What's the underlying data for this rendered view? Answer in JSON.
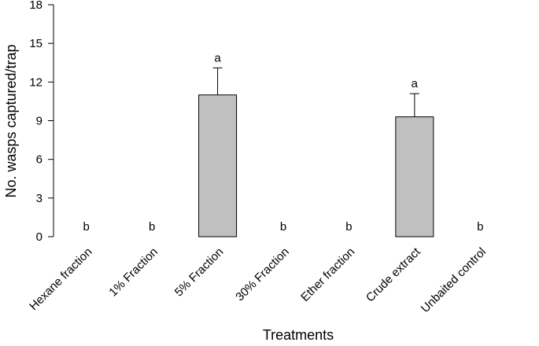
{
  "chart_data": {
    "type": "bar",
    "x_label": "Treatments",
    "y_label": "No. wasps captured/trap",
    "categories": [
      "Hexane fraction",
      "1% Fraction",
      "5% Fraction",
      "30% Fraction",
      "Ether fraction",
      "Crude extract",
      "Unbaited control"
    ],
    "values": [
      0,
      0,
      11,
      0,
      0,
      9.3,
      0
    ],
    "errors": [
      0,
      0,
      2.1,
      0,
      0,
      1.8,
      0
    ],
    "letters": [
      "b",
      "b",
      "a",
      "b",
      "b",
      "a",
      "b"
    ],
    "color": "#c0c0c0",
    "ylim": [
      0,
      18
    ],
    "yticks": [
      0,
      3,
      6,
      9,
      12,
      15,
      18
    ]
  }
}
